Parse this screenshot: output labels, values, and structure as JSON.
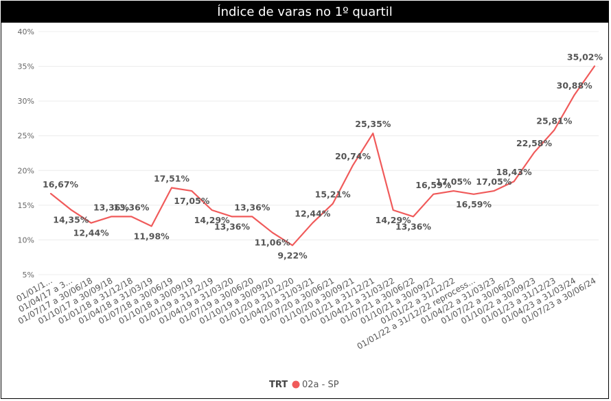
{
  "chart_data": {
    "type": "line",
    "title": "Índice de varas no 1º quartil",
    "xlabel": "",
    "ylabel": "",
    "ylim": [
      5,
      40
    ],
    "yticks": [
      "5%",
      "10%",
      "15%",
      "20%",
      "25%",
      "30%",
      "35%",
      "40%"
    ],
    "grid": true,
    "legend_position": "bottom-center",
    "legend_title": "TRT",
    "categories": [
      "01/01/1...",
      "01/04/17 a 3...",
      "01/07/17 a 30/06/18",
      "01/10/17 a 30/09/18",
      "01/01/18 a 31/12/18",
      "01/04/18 a 31/03/19",
      "01/07/18 a 30/06/19",
      "01/10/18 a 30/09/19",
      "01/01/19 a 31/12/19",
      "01/04/19 a 31/03/20",
      "01/07/19 a 30/06/20",
      "01/10/19 a 30/09/20",
      "01/01/20 a 31/12/20",
      "01/04/20 a 31/03/21",
      "01/07/20 a 30/06/21",
      "01/10/20 a 30/09/21",
      "01/01/21 a 31/12/21",
      "01/04/21 a 31/03/22",
      "01/07/21 a 30/06/22",
      "01/10/21 a 30/09/22",
      "01/01/22 a 31/12/22",
      "01/01/22 a 31/12/22 reprocess...",
      "01/04/22 a 31/03/23",
      "01/07/22 a 30/06/23",
      "01/10/22 a 30/09/23",
      "01/01/23 a 31/12/23",
      "01/04/23 a 31/03/24",
      "01/07/23 a 30/06/24"
    ],
    "series": [
      {
        "name": "02a - SP",
        "color": "#F05A5A",
        "values": [
          16.67,
          14.35,
          12.44,
          13.36,
          13.36,
          11.98,
          17.51,
          17.05,
          14.29,
          13.36,
          13.36,
          11.06,
          9.22,
          12.44,
          15.21,
          20.74,
          25.35,
          14.29,
          13.36,
          16.59,
          17.05,
          16.59,
          17.05,
          18.43,
          22.58,
          25.81,
          30.88,
          35.02
        ],
        "labels": [
          "16,67%",
          "14,35%",
          "12,44%",
          "13,36%",
          "13,36%",
          "11,98%",
          "17,51%",
          "17,05%",
          "14,29%",
          "13,36%",
          "13,36%",
          "11,06%",
          "9,22%",
          "12,44%",
          "15,21%",
          "20,74%",
          "25,35%",
          "14,29%",
          "13,36%",
          "16,59%",
          "17,05%",
          "16,59%",
          "17,05%",
          "18,43%",
          "22,58%",
          "25,81%",
          "30,88%",
          "35,02%"
        ]
      }
    ]
  }
}
